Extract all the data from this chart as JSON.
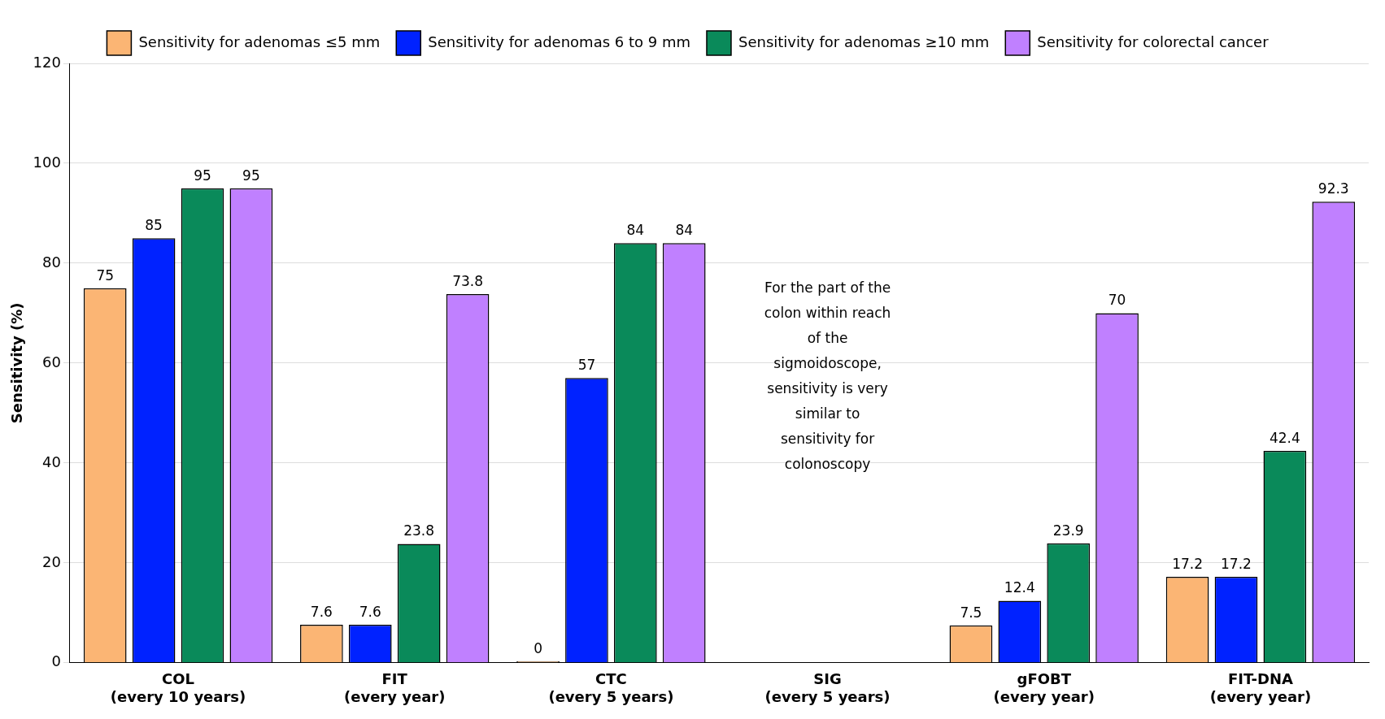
{
  "chart_data": {
    "type": "bar",
    "ylabel": "Sensitivity (%)",
    "categories": [
      "COL\n(every 10 years)",
      "FIT\n(every year)",
      "CTC\n(every 5 years)",
      "SIG\n(every 5 years)",
      "gFOBT\n(every year)",
      "FIT-DNA\n(every year)"
    ],
    "series": [
      {
        "name": "Sensitivity for adenomas ≤5 mm",
        "color": "#fbb574",
        "values": [
          75,
          7.6,
          0,
          null,
          7.5,
          17.2
        ]
      },
      {
        "name": "Sensitivity for adenomas 6 to 9 mm",
        "color": "#0022ff",
        "values": [
          85,
          7.6,
          57,
          null,
          12.4,
          17.2
        ]
      },
      {
        "name": "Sensitivity for adenomas ≥10 mm",
        "color": "#0a8a5a",
        "values": [
          95,
          23.8,
          84,
          null,
          23.9,
          42.4
        ]
      },
      {
        "name": "Sensitivity for colorectal cancer",
        "color": "#c080ff",
        "values": [
          95,
          73.8,
          84,
          null,
          70,
          92.3
        ]
      }
    ],
    "ylim": [
      0,
      120
    ],
    "yticks": [
      0,
      20,
      40,
      60,
      80,
      100,
      120
    ],
    "grid": "y",
    "legend": "top",
    "data_labels": true,
    "annotations": [
      "For the part of the colon within reach of the sigmoidoscope, sensitivity is very similar to sensitivity for colonoscopy"
    ]
  }
}
